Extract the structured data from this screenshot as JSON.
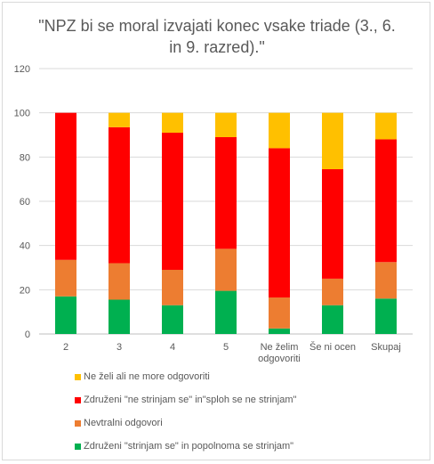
{
  "chart_data": {
    "type": "bar",
    "stacked": true,
    "title_lines": [
      "\"NPZ bi se moral izvajati konec vsake triade (3., 6.",
      "in 9. razred).\""
    ],
    "categories": [
      [
        "2"
      ],
      [
        "3"
      ],
      [
        "4"
      ],
      [
        "5"
      ],
      [
        "Ne želim",
        "odgovoriti"
      ],
      [
        "Še ni ocen"
      ],
      [
        "Skupaj"
      ]
    ],
    "ylim": [
      0,
      120
    ],
    "yticks": [
      0,
      20,
      40,
      60,
      80,
      100,
      120
    ],
    "grid": true,
    "legend_position": "bottom",
    "series": [
      {
        "name": "Združeni \"strinjam se\" in popolnoma se strinjam\"",
        "color": "#00b050",
        "values": [
          17,
          15.5,
          13,
          19.5,
          2.5,
          13,
          16
        ]
      },
      {
        "name": "Nevtralni odgovori",
        "color": "#ed7d31",
        "values": [
          16.5,
          16.5,
          16,
          19,
          14,
          12,
          16.5
        ]
      },
      {
        "name": "Združeni  \"ne strinjam se\" in\"sploh se ne strinjam\"",
        "color": "#ff0000",
        "values": [
          66.5,
          61.5,
          62,
          50.5,
          67.5,
          49.5,
          55.5
        ]
      },
      {
        "name": "Ne želi ali ne more odgovoriti",
        "color": "#ffc000",
        "values": [
          0,
          6.5,
          9,
          11,
          16,
          25.5,
          12
        ]
      }
    ],
    "legend_order": [
      3,
      2,
      1,
      0
    ]
  }
}
